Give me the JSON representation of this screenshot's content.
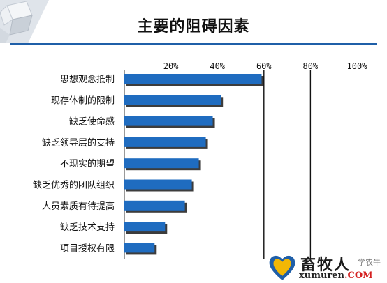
{
  "page": {
    "title": "主要的阻碍因素"
  },
  "chart_data": {
    "type": "bar",
    "orientation": "horizontal",
    "title": "主要的阻碍因素",
    "xlabel": "",
    "ylabel": "",
    "xlim": [
      0,
      100
    ],
    "x_ticks": [
      {
        "value": 20,
        "label": "20%"
      },
      {
        "value": 40,
        "label": "40%"
      },
      {
        "value": 60,
        "label": "60%"
      },
      {
        "value": 80,
        "label": "80%"
      },
      {
        "value": 100,
        "label": "100%"
      }
    ],
    "gridlines_at": [
      60,
      80
    ],
    "categories": [
      "思想观念抵制",
      "现存体制的限制",
      "缺乏使命感",
      "缺乏领导层的支持",
      "不现实的期望",
      "缺乏优秀的团队组织",
      "人员素质有待提高",
      "缺乏技术支持",
      "项目授权有限"
    ],
    "values": [
      59,
      41.5,
      38,
      35,
      32,
      29,
      26,
      17.5,
      13
    ],
    "bar_color": "#1f6cc0",
    "bar_shadow_color": "#1a1a1a",
    "grid": true,
    "legend": "none"
  },
  "watermark": {
    "name_cn": "畜牧人",
    "sub": "学农牛",
    "domain": "xumuren",
    "tld": ".COM",
    "accent_colors": [
      "#f2b705",
      "#1f5fa8"
    ]
  }
}
